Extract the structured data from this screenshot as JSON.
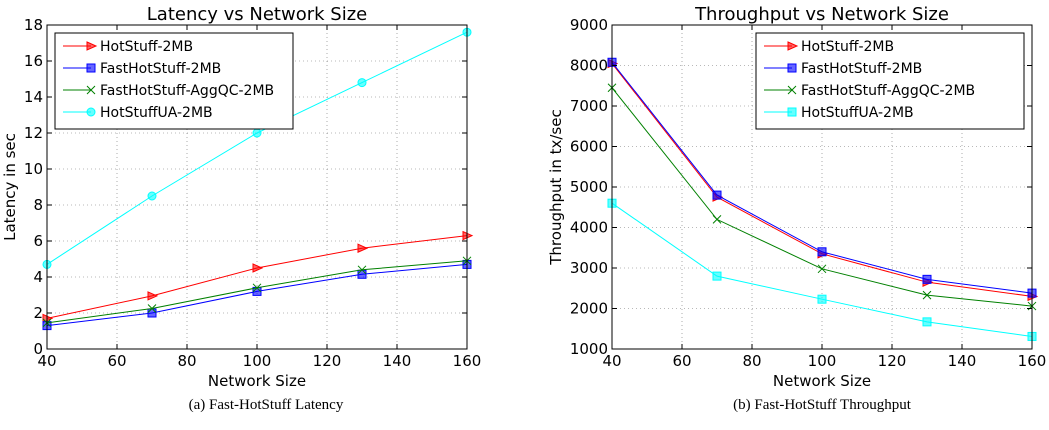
{
  "captions": {
    "left": "(a) Fast-HotStuff Latency",
    "right": "(b) Fast-HotStuff Throughput"
  },
  "chart_data": [
    {
      "type": "line",
      "title": "Latency vs Network Size",
      "xlabel": "Network Size",
      "ylabel": "Latency in sec",
      "xlim": [
        40,
        160
      ],
      "ylim": [
        0,
        18
      ],
      "xticks": [
        40,
        60,
        80,
        100,
        120,
        140,
        160
      ],
      "yticks": [
        0,
        2,
        4,
        6,
        8,
        10,
        12,
        14,
        16,
        18
      ],
      "grid": true,
      "legend": "top-left",
      "x": [
        40,
        70,
        100,
        130,
        160
      ],
      "series": [
        {
          "name": "HotStuff-2MB",
          "color": "#ff0000",
          "marker": "triangle-right",
          "values": [
            1.7,
            2.95,
            4.5,
            5.6,
            6.3
          ]
        },
        {
          "name": "FastHotStuff-2MB",
          "color": "#0000ff",
          "marker": "square",
          "values": [
            1.3,
            2.0,
            3.2,
            4.15,
            4.7
          ]
        },
        {
          "name": "FastHotStuff-AggQC-2MB",
          "color": "#008000",
          "marker": "x",
          "values": [
            1.45,
            2.25,
            3.4,
            4.4,
            4.9
          ]
        },
        {
          "name": "HotStuffUA-2MB",
          "color": "#00ffff",
          "marker": "circle",
          "values": [
            4.7,
            8.5,
            12.0,
            14.8,
            17.6
          ]
        }
      ]
    },
    {
      "type": "line",
      "title": "Throughput vs Network Size",
      "xlabel": "Network Size",
      "ylabel": "Throughput in tx/sec",
      "xlim": [
        40,
        160
      ],
      "ylim": [
        1000,
        9000
      ],
      "xticks": [
        40,
        60,
        80,
        100,
        120,
        140,
        160
      ],
      "yticks": [
        1000,
        2000,
        3000,
        4000,
        5000,
        6000,
        7000,
        8000,
        9000
      ],
      "grid": true,
      "legend": "top-right",
      "x": [
        40,
        70,
        100,
        130,
        160
      ],
      "series": [
        {
          "name": "HotStuff-2MB",
          "color": "#ff0000",
          "marker": "triangle-right",
          "values": [
            8050,
            4750,
            3350,
            2650,
            2300
          ]
        },
        {
          "name": "FastHotStuff-2MB",
          "color": "#0000ff",
          "marker": "square",
          "values": [
            8080,
            4800,
            3400,
            2720,
            2380
          ]
        },
        {
          "name": "FastHotStuff-AggQC-2MB",
          "color": "#008000",
          "marker": "x",
          "values": [
            7450,
            4200,
            2980,
            2330,
            2060
          ]
        },
        {
          "name": "HotStuffUA-2MB",
          "color": "#00ffff",
          "marker": "square",
          "values": [
            4600,
            2800,
            2230,
            1670,
            1310
          ]
        }
      ]
    }
  ]
}
